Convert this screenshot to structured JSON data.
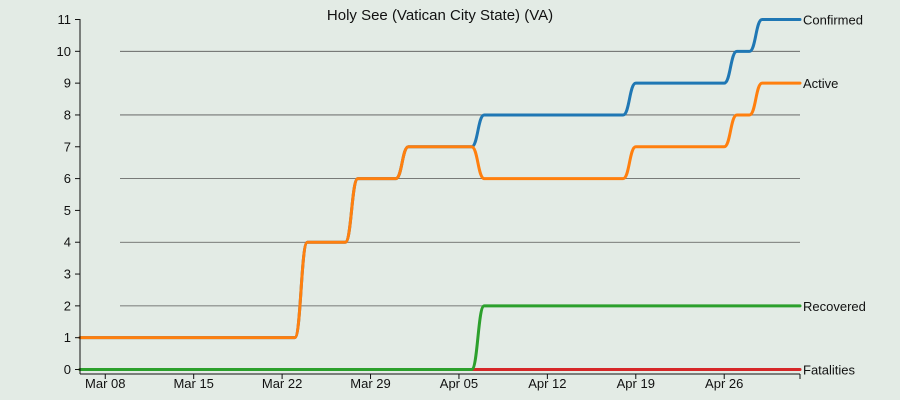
{
  "chart_data": {
    "type": "line",
    "title": "Holy See (Vatican City State) (VA)",
    "xlabel": "",
    "ylabel": "",
    "ylim": [
      0,
      11
    ],
    "yticks": [
      0,
      1,
      2,
      3,
      4,
      5,
      6,
      7,
      8,
      9,
      10,
      11
    ],
    "grid": "horizontal",
    "x": [
      "2020-03-06",
      "2020-03-07",
      "2020-03-08",
      "2020-03-09",
      "2020-03-10",
      "2020-03-11",
      "2020-03-12",
      "2020-03-13",
      "2020-03-14",
      "2020-03-15",
      "2020-03-16",
      "2020-03-17",
      "2020-03-18",
      "2020-03-19",
      "2020-03-20",
      "2020-03-21",
      "2020-03-22",
      "2020-03-23",
      "2020-03-24",
      "2020-03-25",
      "2020-03-26",
      "2020-03-27",
      "2020-03-28",
      "2020-03-29",
      "2020-03-30",
      "2020-03-31",
      "2020-04-01",
      "2020-04-02",
      "2020-04-03",
      "2020-04-04",
      "2020-04-05",
      "2020-04-06",
      "2020-04-07",
      "2020-04-08",
      "2020-04-09",
      "2020-04-10",
      "2020-04-11",
      "2020-04-12",
      "2020-04-13",
      "2020-04-14",
      "2020-04-15",
      "2020-04-16",
      "2020-04-17",
      "2020-04-18",
      "2020-04-19",
      "2020-04-20",
      "2020-04-21",
      "2020-04-22",
      "2020-04-23",
      "2020-04-24",
      "2020-04-25",
      "2020-04-26",
      "2020-04-27",
      "2020-04-28",
      "2020-04-29",
      "2020-04-30",
      "2020-05-01",
      "2020-05-02"
    ],
    "x_ticks": [
      {
        "date": "2020-03-08",
        "label": "Mar 08"
      },
      {
        "date": "2020-03-15",
        "label": "Mar 15"
      },
      {
        "date": "2020-03-22",
        "label": "Mar 22"
      },
      {
        "date": "2020-03-29",
        "label": "Mar 29"
      },
      {
        "date": "2020-04-05",
        "label": "Apr 05"
      },
      {
        "date": "2020-04-12",
        "label": "Apr 12"
      },
      {
        "date": "2020-04-19",
        "label": "Apr 19"
      },
      {
        "date": "2020-04-26",
        "label": "Apr 26"
      }
    ],
    "series": [
      {
        "name": "Confirmed",
        "color": "#1f77b4",
        "values": [
          1,
          1,
          1,
          1,
          1,
          1,
          1,
          1,
          1,
          1,
          1,
          1,
          1,
          1,
          1,
          1,
          1,
          1,
          4,
          4,
          4,
          4,
          6,
          6,
          6,
          6,
          7,
          7,
          7,
          7,
          7,
          7,
          8,
          8,
          8,
          8,
          8,
          8,
          8,
          8,
          8,
          8,
          8,
          8,
          9,
          9,
          9,
          9,
          9,
          9,
          9,
          9,
          10,
          10,
          11,
          11,
          11,
          11
        ]
      },
      {
        "name": "Active",
        "color": "#ff7f0e",
        "values": [
          1,
          1,
          1,
          1,
          1,
          1,
          1,
          1,
          1,
          1,
          1,
          1,
          1,
          1,
          1,
          1,
          1,
          1,
          4,
          4,
          4,
          4,
          6,
          6,
          6,
          6,
          7,
          7,
          7,
          7,
          7,
          7,
          6,
          6,
          6,
          6,
          6,
          6,
          6,
          6,
          6,
          6,
          6,
          6,
          7,
          7,
          7,
          7,
          7,
          7,
          7,
          7,
          8,
          8,
          9,
          9,
          9,
          9
        ]
      },
      {
        "name": "Recovered",
        "color": "#2ca02c",
        "values": [
          0,
          0,
          0,
          0,
          0,
          0,
          0,
          0,
          0,
          0,
          0,
          0,
          0,
          0,
          0,
          0,
          0,
          0,
          0,
          0,
          0,
          0,
          0,
          0,
          0,
          0,
          0,
          0,
          0,
          0,
          0,
          0,
          2,
          2,
          2,
          2,
          2,
          2,
          2,
          2,
          2,
          2,
          2,
          2,
          2,
          2,
          2,
          2,
          2,
          2,
          2,
          2,
          2,
          2,
          2,
          2,
          2,
          2
        ]
      },
      {
        "name": "Fatalities",
        "color": "#d62728",
        "values": [
          0,
          0,
          0,
          0,
          0,
          0,
          0,
          0,
          0,
          0,
          0,
          0,
          0,
          0,
          0,
          0,
          0,
          0,
          0,
          0,
          0,
          0,
          0,
          0,
          0,
          0,
          0,
          0,
          0,
          0,
          0,
          0,
          0,
          0,
          0,
          0,
          0,
          0,
          0,
          0,
          0,
          0,
          0,
          0,
          0,
          0,
          0,
          0,
          0,
          0,
          0,
          0,
          0,
          0,
          0,
          0,
          0,
          0
        ]
      }
    ],
    "legend": "line-end labels on right"
  }
}
